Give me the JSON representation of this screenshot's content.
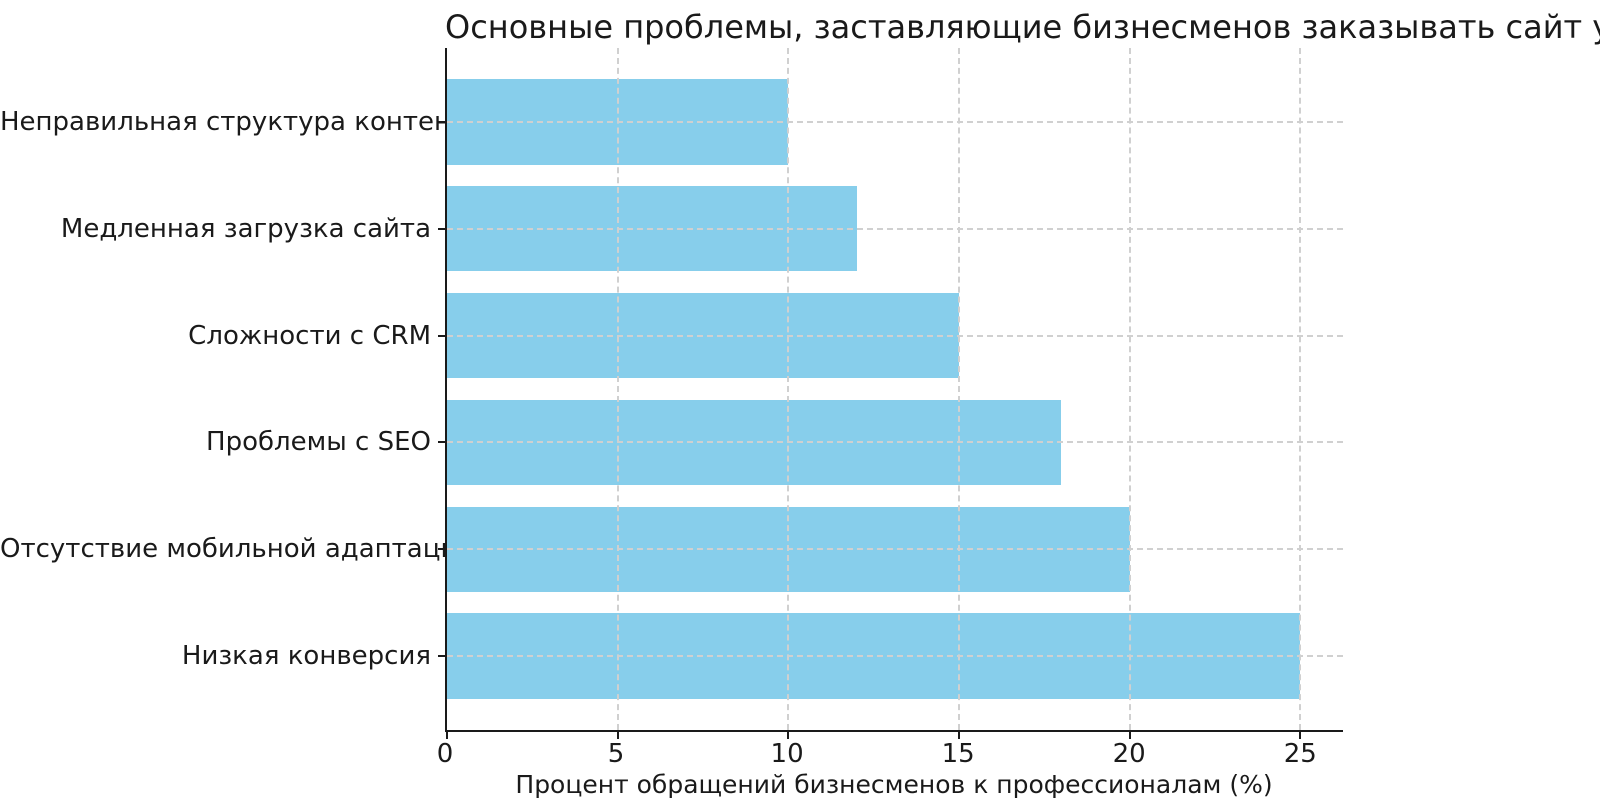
{
  "chart_data": {
    "type": "bar",
    "orientation": "horizontal",
    "title": "Основные проблемы, заставляющие бизнесменов заказывать сайт у профессионалов",
    "xlabel": "Процент обращений бизнесменов к профессионалам (%)",
    "ylabel": "",
    "categories": [
      "Неправильная структура контента",
      "Медленная загрузка сайта",
      "Сложности с CRM",
      "Проблемы с SEO",
      "Отсутствие мобильной адаптации",
      "Низкая конверсия"
    ],
    "values": [
      10,
      12,
      15,
      18,
      20,
      25
    ],
    "x_ticks": [
      0,
      5,
      10,
      15,
      20,
      25
    ],
    "xlim": [
      0,
      26.25
    ],
    "ylim": [
      -0.69,
      5.69
    ],
    "bar_thickness": 0.8,
    "grid": "dashed gridlines on both axes, drawn above bars",
    "legend": "none",
    "colors": {
      "bar_fill": "#87CEEB",
      "grid": "#d0d0d0",
      "spine": "#1a1a1a",
      "text": "#1a1a1a",
      "background": "#ffffff"
    }
  }
}
